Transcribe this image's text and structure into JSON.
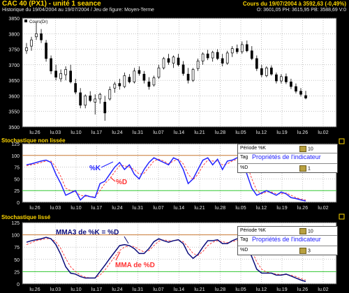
{
  "title_left": "CAC 40 (PX1) - unité 1 seance",
  "title_right": "Cours du 19/07/2004 à 3592,63 (-0,49%)",
  "info_left": "Historique du 19/04/2004 au 19/07/2004 / Jeu de figure: Moyen-Terme",
  "info_right": "O: 3601,05 PH: 3615,95 PB: 3588,69 V:0",
  "x_ticks": [
    "lu.26",
    "lu.03",
    "lu.10",
    "lu.17",
    "lu.24",
    "lu.31",
    "lu.07",
    "lu.14",
    "lu.21",
    "lu.28",
    "lu.05",
    "lu.12",
    "lu.19",
    "lu.26",
    "lu.02"
  ],
  "panel1": {
    "legend": "Cours(Dr)",
    "y_ticks": [
      "3850",
      "3800",
      "3750",
      "3700",
      "3650",
      "3600",
      "3550",
      "3500"
    ]
  },
  "panel2": {
    "title": "Stochastique non lissée",
    "y_ticks": [
      "125",
      "100",
      "75",
      "50",
      "25",
      "0"
    ],
    "label_k": "%K",
    "label_d": "%D",
    "props": {
      "title": "Propriétés de l'indicateur",
      "rows": [
        {
          "key": "Période %K",
          "val": "10"
        },
        {
          "key": "Tag",
          "val": ""
        },
        {
          "key": "%D",
          "val": "1"
        }
      ]
    }
  },
  "panel3": {
    "title": "Stochastique lissé",
    "y_ticks": [
      "125",
      "100",
      "75",
      "50",
      "25",
      "0"
    ],
    "label_k": "MMA3 de %K = %D",
    "label_d": "MMA de %D",
    "props": {
      "title": "Propriétés de l'indicateur",
      "rows": [
        {
          "key": "Période %K",
          "val": "10"
        },
        {
          "key": "Tag",
          "val": ""
        },
        {
          "key": "%D",
          "val": "3"
        }
      ]
    }
  },
  "colors": {
    "k_line": "#2222ff",
    "d_line": "#ff3333",
    "upper_band": "#c87832",
    "lower_band": "#32c832",
    "grid": "#888888"
  },
  "chart_data": [
    {
      "type": "candlestick",
      "ylim": [
        3500,
        3850
      ],
      "legend": "Cours(Dr)",
      "candles": [
        {
          "o": 3745,
          "h": 3770,
          "l": 3735,
          "c": 3755
        },
        {
          "o": 3760,
          "h": 3790,
          "l": 3745,
          "c": 3780
        },
        {
          "o": 3790,
          "h": 3835,
          "l": 3780,
          "c": 3800
        },
        {
          "o": 3800,
          "h": 3815,
          "l": 3770,
          "c": 3780
        },
        {
          "o": 3770,
          "h": 3780,
          "l": 3710,
          "c": 3720
        },
        {
          "o": 3720,
          "h": 3730,
          "l": 3670,
          "c": 3680
        },
        {
          "o": 3680,
          "h": 3700,
          "l": 3650,
          "c": 3660
        },
        {
          "o": 3655,
          "h": 3685,
          "l": 3645,
          "c": 3672
        },
        {
          "o": 3668,
          "h": 3695,
          "l": 3650,
          "c": 3685
        },
        {
          "o": 3680,
          "h": 3700,
          "l": 3640,
          "c": 3645
        },
        {
          "o": 3640,
          "h": 3655,
          "l": 3605,
          "c": 3612
        },
        {
          "o": 3610,
          "h": 3625,
          "l": 3560,
          "c": 3570
        },
        {
          "o": 3570,
          "h": 3605,
          "l": 3560,
          "c": 3600
        },
        {
          "o": 3600,
          "h": 3615,
          "l": 3580,
          "c": 3585
        },
        {
          "o": 3580,
          "h": 3605,
          "l": 3540,
          "c": 3590
        },
        {
          "o": 3590,
          "h": 3610,
          "l": 3575,
          "c": 3605
        },
        {
          "o": 3580,
          "h": 3600,
          "l": 3520,
          "c": 3545
        },
        {
          "o": 3590,
          "h": 3630,
          "l": 3585,
          "c": 3620
        },
        {
          "o": 3625,
          "h": 3645,
          "l": 3610,
          "c": 3638
        },
        {
          "o": 3640,
          "h": 3655,
          "l": 3620,
          "c": 3632
        },
        {
          "o": 3630,
          "h": 3675,
          "l": 3625,
          "c": 3665
        },
        {
          "o": 3660,
          "h": 3670,
          "l": 3640,
          "c": 3645
        },
        {
          "o": 3645,
          "h": 3690,
          "l": 3640,
          "c": 3680
        },
        {
          "o": 3682,
          "h": 3695,
          "l": 3665,
          "c": 3672
        },
        {
          "o": 3670,
          "h": 3680,
          "l": 3640,
          "c": 3650
        },
        {
          "o": 3645,
          "h": 3660,
          "l": 3620,
          "c": 3630
        },
        {
          "o": 3635,
          "h": 3665,
          "l": 3630,
          "c": 3658
        },
        {
          "o": 3660,
          "h": 3700,
          "l": 3655,
          "c": 3690
        },
        {
          "o": 3690,
          "h": 3725,
          "l": 3685,
          "c": 3720
        },
        {
          "o": 3720,
          "h": 3735,
          "l": 3700,
          "c": 3708
        },
        {
          "o": 3705,
          "h": 3730,
          "l": 3690,
          "c": 3725
        },
        {
          "o": 3722,
          "h": 3735,
          "l": 3695,
          "c": 3700
        },
        {
          "o": 3700,
          "h": 3712,
          "l": 3665,
          "c": 3672
        },
        {
          "o": 3670,
          "h": 3690,
          "l": 3640,
          "c": 3650
        },
        {
          "o": 3650,
          "h": 3690,
          "l": 3645,
          "c": 3685
        },
        {
          "o": 3688,
          "h": 3720,
          "l": 3680,
          "c": 3712
        },
        {
          "o": 3712,
          "h": 3740,
          "l": 3700,
          "c": 3735
        },
        {
          "o": 3735,
          "h": 3748,
          "l": 3715,
          "c": 3722
        },
        {
          "o": 3722,
          "h": 3745,
          "l": 3710,
          "c": 3740
        },
        {
          "o": 3740,
          "h": 3750,
          "l": 3715,
          "c": 3720
        },
        {
          "o": 3720,
          "h": 3735,
          "l": 3695,
          "c": 3705
        },
        {
          "o": 3705,
          "h": 3745,
          "l": 3700,
          "c": 3738
        },
        {
          "o": 3738,
          "h": 3760,
          "l": 3725,
          "c": 3752
        },
        {
          "o": 3752,
          "h": 3765,
          "l": 3735,
          "c": 3742
        },
        {
          "o": 3742,
          "h": 3775,
          "l": 3735,
          "c": 3765
        },
        {
          "o": 3765,
          "h": 3778,
          "l": 3740,
          "c": 3745
        },
        {
          "o": 3745,
          "h": 3760,
          "l": 3715,
          "c": 3720
        },
        {
          "o": 3720,
          "h": 3730,
          "l": 3680,
          "c": 3688
        },
        {
          "o": 3688,
          "h": 3700,
          "l": 3660,
          "c": 3668
        },
        {
          "o": 3665,
          "h": 3695,
          "l": 3660,
          "c": 3690
        },
        {
          "o": 3690,
          "h": 3698,
          "l": 3665,
          "c": 3670
        },
        {
          "o": 3668,
          "h": 3675,
          "l": 3640,
          "c": 3648
        },
        {
          "o": 3648,
          "h": 3670,
          "l": 3640,
          "c": 3662
        },
        {
          "o": 3662,
          "h": 3672,
          "l": 3638,
          "c": 3645
        },
        {
          "o": 3645,
          "h": 3655,
          "l": 3622,
          "c": 3630
        },
        {
          "o": 3630,
          "h": 3640,
          "l": 3608,
          "c": 3615
        },
        {
          "o": 3615,
          "h": 3625,
          "l": 3598,
          "c": 3605
        },
        {
          "o": 3601,
          "h": 3616,
          "l": 3589,
          "c": 3593
        }
      ]
    },
    {
      "type": "line",
      "title": "Stochastique non lissée",
      "ylim": [
        0,
        125
      ],
      "bands": [
        100,
        25
      ],
      "series": [
        {
          "name": "%K",
          "values": [
            80,
            82,
            85,
            88,
            90,
            85,
            60,
            40,
            15,
            20,
            25,
            5,
            15,
            12,
            10,
            40,
            45,
            60,
            75,
            85,
            70,
            80,
            60,
            50,
            70,
            85,
            95,
            90,
            85,
            80,
            95,
            90,
            70,
            40,
            50,
            70,
            90,
            95,
            80,
            92,
            70,
            88,
            90,
            95,
            92,
            60,
            30,
            15,
            20,
            25,
            20,
            15,
            22,
            18,
            10,
            8,
            5,
            3
          ]
        },
        {
          "name": "%D",
          "values": [
            78,
            80,
            82,
            85,
            88,
            88,
            75,
            55,
            30,
            25,
            22,
            15,
            13,
            12,
            12,
            25,
            40,
            50,
            65,
            78,
            78,
            75,
            70,
            60,
            62,
            75,
            88,
            92,
            88,
            82,
            88,
            92,
            82,
            60,
            48,
            60,
            78,
            90,
            88,
            88,
            80,
            82,
            88,
            92,
            93,
            80,
            50,
            25,
            18,
            22,
            22,
            18,
            18,
            20,
            15,
            10,
            7,
            5
          ]
        }
      ]
    },
    {
      "type": "line",
      "title": "Stochastique lissé",
      "ylim": [
        0,
        125
      ],
      "bands": [
        100,
        25
      ],
      "series": [
        {
          "name": "MMA3 de %K = %D",
          "values": [
            85,
            88,
            90,
            92,
            95,
            92,
            80,
            60,
            35,
            22,
            20,
            15,
            12,
            12,
            12,
            25,
            38,
            52,
            65,
            78,
            80,
            78,
            72,
            62,
            62,
            72,
            86,
            92,
            88,
            85,
            88,
            90,
            82,
            62,
            52,
            60,
            75,
            88,
            88,
            90,
            82,
            82,
            88,
            92,
            93,
            78,
            55,
            30,
            22,
            22,
            22,
            18,
            18,
            20,
            16,
            12,
            8,
            5
          ]
        },
        {
          "name": "MMA de %D",
          "values": [
            80,
            84,
            88,
            90,
            92,
            92,
            86,
            72,
            52,
            35,
            25,
            18,
            14,
            12,
            12,
            18,
            28,
            42,
            55,
            68,
            75,
            78,
            76,
            70,
            65,
            68,
            78,
            87,
            90,
            88,
            88,
            89,
            86,
            75,
            62,
            58,
            66,
            78,
            85,
            88,
            86,
            84,
            86,
            89,
            92,
            86,
            68,
            45,
            30,
            24,
            22,
            20,
            19,
            19,
            18,
            15,
            11,
            8
          ]
        }
      ]
    }
  ]
}
